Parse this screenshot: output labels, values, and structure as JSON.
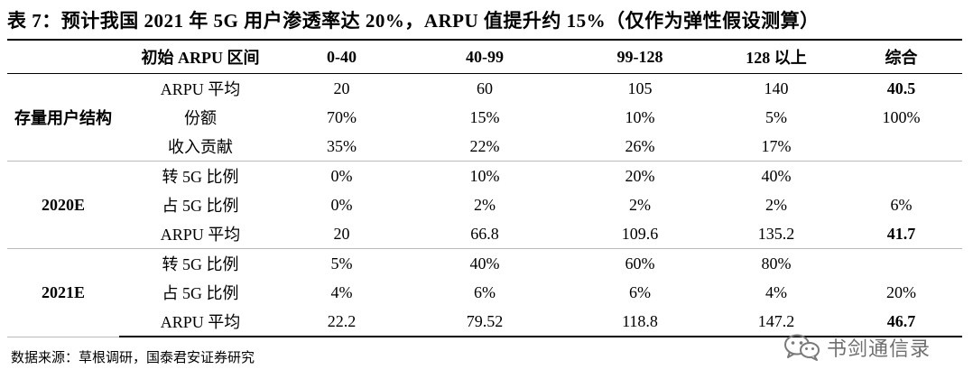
{
  "title": "表 7：预计我国 2021 年 5G 用户渗透率达 20%，ARPU 值提升约 15%（仅作为弹性假设测算）",
  "table": {
    "header": [
      "",
      "初始 ARPU 区间",
      "0-40",
      "40-99",
      "99-128",
      "128 以上",
      "综合"
    ],
    "groups": [
      {
        "label": "存量用户结构",
        "rows": [
          {
            "metric": "ARPU 平均",
            "values": [
              "20",
              "60",
              "105",
              "140"
            ],
            "total": "40.5",
            "total_bold": true
          },
          {
            "metric": "份额",
            "values": [
              "70%",
              "15%",
              "10%",
              "5%"
            ],
            "total": "100%",
            "total_bold": false
          },
          {
            "metric": "收入贡献",
            "values": [
              "35%",
              "22%",
              "26%",
              "17%"
            ],
            "total": "",
            "total_bold": false
          }
        ]
      },
      {
        "label": "2020E",
        "rows": [
          {
            "metric": "转 5G 比例",
            "values": [
              "0%",
              "10%",
              "20%",
              "40%"
            ],
            "total": "",
            "total_bold": false
          },
          {
            "metric": "占 5G 比例",
            "values": [
              "0%",
              "2%",
              "2%",
              "2%"
            ],
            "total": "6%",
            "total_bold": false
          },
          {
            "metric": "ARPU 平均",
            "values": [
              "20",
              "66.8",
              "109.6",
              "135.2"
            ],
            "total": "41.7",
            "total_bold": true
          }
        ]
      },
      {
        "label": "2021E",
        "rows": [
          {
            "metric": "转 5G 比例",
            "values": [
              "5%",
              "40%",
              "60%",
              "80%"
            ],
            "total": "",
            "total_bold": false
          },
          {
            "metric": "占 5G 比例",
            "values": [
              "4%",
              "6%",
              "6%",
              "4%"
            ],
            "total": "20%",
            "total_bold": false
          },
          {
            "metric": "ARPU 平均",
            "values": [
              "22.2",
              "79.52",
              "118.8",
              "147.2"
            ],
            "total": "46.7",
            "total_bold": true
          }
        ]
      }
    ]
  },
  "source": "数据来源：草根调研，国泰君安证券研究",
  "watermark": {
    "text": "书剑通信录",
    "icon": "wechat-icon"
  }
}
